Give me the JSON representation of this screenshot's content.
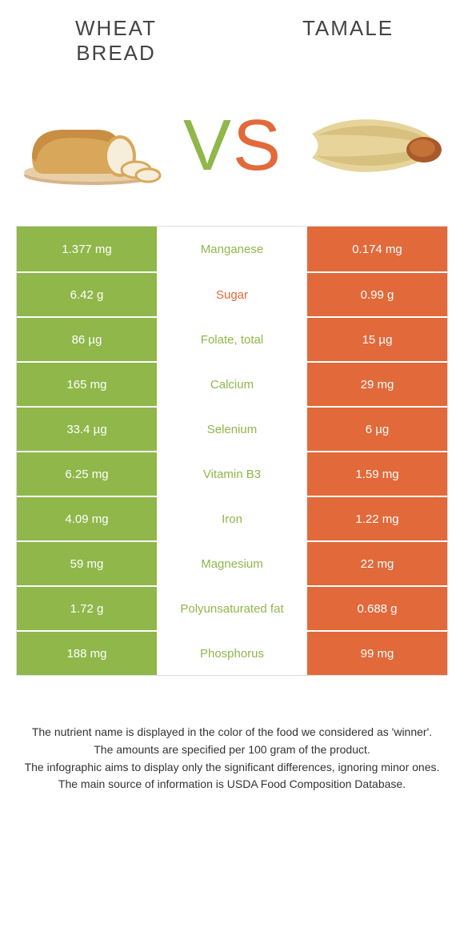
{
  "colors": {
    "left": "#8fb74a",
    "right": "#e2693a",
    "textDark": "#333333",
    "white": "#ffffff",
    "border": "#dddddd"
  },
  "header": {
    "leftTitle": "WHEAT\nBREAD",
    "rightTitle": "TAMALE"
  },
  "vs": {
    "v": "V",
    "s": "S"
  },
  "rows": [
    {
      "left": "1.377 mg",
      "label": "Manganese",
      "right": "0.174 mg",
      "winner": "left"
    },
    {
      "left": "6.42 g",
      "label": "Sugar",
      "right": "0.99 g",
      "winner": "right"
    },
    {
      "left": "86 µg",
      "label": "Folate, total",
      "right": "15 µg",
      "winner": "left"
    },
    {
      "left": "165 mg",
      "label": "Calcium",
      "right": "29 mg",
      "winner": "left"
    },
    {
      "left": "33.4 µg",
      "label": "Selenium",
      "right": "6 µg",
      "winner": "left"
    },
    {
      "left": "6.25 mg",
      "label": "Vitamin B3",
      "right": "1.59 mg",
      "winner": "left"
    },
    {
      "left": "4.09 mg",
      "label": "Iron",
      "right": "1.22 mg",
      "winner": "left"
    },
    {
      "left": "59 mg",
      "label": "Magnesium",
      "right": "22 mg",
      "winner": "left"
    },
    {
      "left": "1.72 g",
      "label": "Polyunsaturated fat",
      "right": "0.688 g",
      "winner": "left"
    },
    {
      "left": "188 mg",
      "label": "Phosphorus",
      "right": "99 mg",
      "winner": "left"
    }
  ],
  "footnotes": {
    "l1": "The nutrient name is displayed in the color of the food we considered as 'winner'.",
    "l2": "The amounts are specified per 100 gram of the product.",
    "l3": "The infographic aims to display only the significant differences, ignoring minor ones.",
    "l4": "The main source of information is USDA Food Composition Database."
  }
}
